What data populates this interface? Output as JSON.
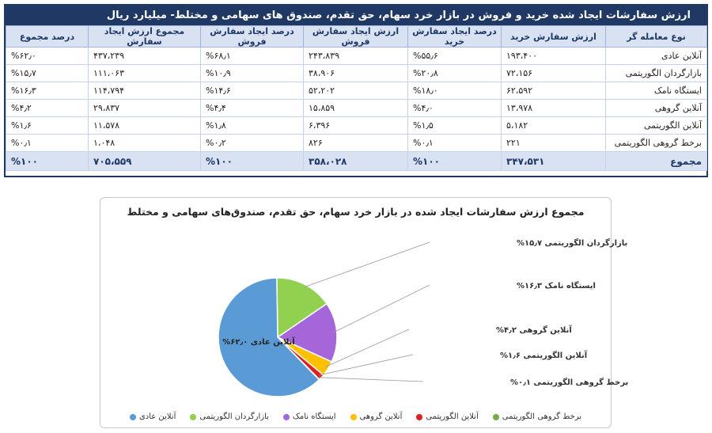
{
  "table": {
    "title": "ارزش سفارشات ایجاد شده خرید و فروش در بازار خرد سهام، حق تقدم، صندوق های سهامی و مختلط- میلیارد ریال",
    "headers": [
      "نوع معامله گر",
      "ارزش سفارش خرید",
      "درصد ایجاد سفارش خرید",
      "ارزش ایجاد سفارش فروش",
      "درصد ایجاد سفارش فروش",
      "مجموع ارزش ایجاد سفارش",
      "درصد مجموع"
    ],
    "rows": [
      [
        "آنلاین عادی",
        "۱۹۳،۴۰۰",
        "%۵۵٫۶",
        "۲۴۳،۸۳۹",
        "%۶۸٫۱",
        "۴۳۷،۲۳۹",
        "%۶۲٫۰"
      ],
      [
        "بازارگردان الگوریتمی",
        "۷۲،۱۵۶",
        "%۲۰٫۸",
        "۳۸،۹۰۶",
        "%۱۰٫۹",
        "۱۱۱،۰۶۳",
        "%۱۵٫۷"
      ],
      [
        "ایستگاه نامک",
        "۶۲،۵۹۲",
        "%۱۸٫۰",
        "۵۲،۲۰۲",
        "%۱۴٫۶",
        "۱۱۴،۷۹۴",
        "%۱۶٫۳"
      ],
      [
        "آنلاین گروهی",
        "۱۳،۹۷۸",
        "%۴٫۰",
        "۱۵،۸۵۹",
        "%۴٫۴",
        "۲۹،۸۳۷",
        "%۴٫۲"
      ],
      [
        "آنلاین الگوریتمی",
        "۵،۱۸۲",
        "%۱٫۵",
        "۶،۳۹۶",
        "%۱٫۸",
        "۱۱،۵۷۸",
        "%۱٫۶"
      ],
      [
        "برخط گروهی الگوریتمی",
        "۲۲۱",
        "%۰٫۱",
        "۸۲۶",
        "%۰٫۲",
        "۱،۰۴۸",
        "%۰٫۱"
      ]
    ],
    "total": [
      "مجموع",
      "۳۴۷،۵۳۱",
      "%۱۰۰",
      "۳۵۸،۰۲۸",
      "%۱۰۰",
      "۷۰۵،۵۵۹",
      "%۱۰۰"
    ]
  },
  "chart_data": {
    "type": "pie",
    "title": "مجموع ارزش سفارشات ایجاد شده در بازار خرد سهام، حق تقدم، صندوق‌های سهامی و مختلط",
    "categories": [
      "آنلاین عادی",
      "بازارگردان الگوریتمی",
      "ایستگاه نامک",
      "آنلاین گروهی",
      "آنلاین الگوریتمی",
      "برخط گروهی الگوریتمی"
    ],
    "values": [
      62.0,
      15.7,
      16.3,
      4.2,
      1.6,
      0.1
    ],
    "data_labels": [
      "آنلاین عادی ۶۲٫۰%",
      "بازارگردان الگوریتمی ۱۵٫۷%",
      "ایستگاه نامک ۱۶٫۳%",
      "آنلاین گروهی ۴٫۲%",
      "آنلاین الگوریتمی ۱٫۶%",
      "برخط گروهی الگوریتمی ۰٫۱%"
    ],
    "colors": [
      "#5b9bd5",
      "#92d050",
      "#a566d9",
      "#ffc000",
      "#e02020",
      "#70ad47"
    ],
    "legend": "bottom"
  }
}
